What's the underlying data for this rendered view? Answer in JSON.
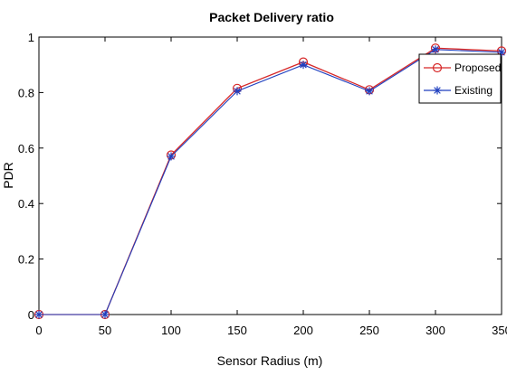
{
  "chart_data": {
    "type": "line",
    "title": "Packet Delivery ratio",
    "xlabel": "Sensor Radius (m)",
    "ylabel": "PDR",
    "x": [
      0,
      50,
      100,
      150,
      200,
      250,
      300,
      350
    ],
    "xlim": [
      0,
      350
    ],
    "ylim": [
      0,
      1
    ],
    "xticks": [
      0,
      50,
      100,
      150,
      200,
      250,
      300,
      350
    ],
    "yticks": [
      0,
      0.2,
      0.4,
      0.6,
      0.8,
      1
    ],
    "ytick_labels": [
      "0",
      "0.2",
      "0.4",
      "0.6",
      "0.8",
      "1"
    ],
    "grid": false,
    "legend_position": "top-right",
    "series": [
      {
        "name": "Proposed",
        "marker": "circle",
        "color": "#d62728",
        "values": [
          0,
          0,
          0.575,
          0.815,
          0.91,
          0.81,
          0.96,
          0.95
        ]
      },
      {
        "name": "Existing",
        "marker": "star",
        "color": "#1f3fbf",
        "values": [
          0,
          0,
          0.57,
          0.805,
          0.9,
          0.805,
          0.955,
          0.945
        ]
      }
    ]
  }
}
